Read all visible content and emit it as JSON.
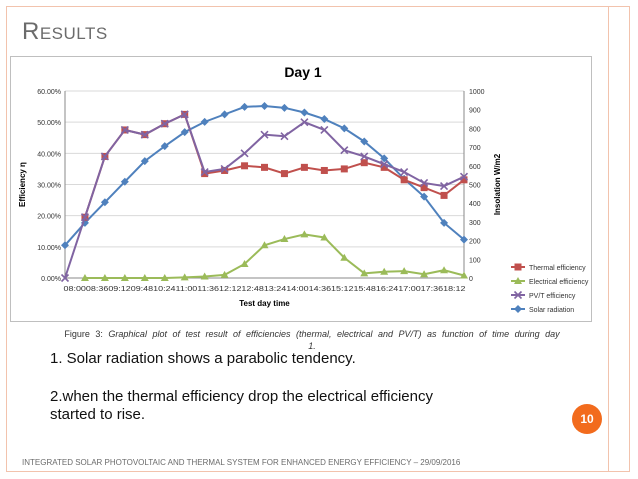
{
  "slide": {
    "title": "Results",
    "caption_lead": "Figure 3:",
    "caption_body": "Graphical plot of test result of efficiencies (thermal, electrical and PV/T) as function of time during day 1.",
    "point1": "1. Solar radiation shows a parabolic tendency.",
    "point2_line1": "2.when the thermal efficiency drop the electrical efficiency",
    "point2_line2": "started to rise.",
    "page_number": "10",
    "footer": "INTEGRATED SOLAR PHOTOVOLTAIC AND THERMAL SYSTEM FOR ENHANCED ENERGY EFFICIENCY – 29/09/2016"
  },
  "chart_data": {
    "type": "line",
    "title": "Day 1",
    "xlabel": "Test  day time",
    "ylabel": "Efficiency η",
    "y2label": "Insolation W/m2",
    "x_tick_text": "08:0008:3609:1209:4810:2411:0011:3612:1212:4813:2414:0014:3615:1215:4816:2417:0017:3618:12",
    "ylim": [
      0,
      60
    ],
    "yticks": [
      "0.00%",
      "10.00%",
      "20.00%",
      "30.00%",
      "40.00%",
      "50.00%",
      "60.00%"
    ],
    "y2lim": [
      0,
      1000
    ],
    "y2ticks": [
      "0",
      "100",
      "200",
      "300",
      "400",
      "500",
      "600",
      "700",
      "800",
      "900",
      "1000"
    ],
    "grid": true,
    "legend_position": "right",
    "series": [
      {
        "name": "Thermal efficiency",
        "axis": "left",
        "color": "#c0504d",
        "marker": "square",
        "x": [
          1,
          2,
          3,
          4,
          5,
          6,
          7,
          8,
          9,
          10,
          11,
          12,
          13,
          14,
          15,
          16,
          17,
          18,
          19,
          20
        ],
        "values": [
          19.5,
          39,
          47.5,
          46,
          49.5,
          52.5,
          33.5,
          34.5,
          36,
          35.5,
          33.5,
          35.5,
          34.5,
          35,
          37,
          35.5,
          31.5,
          29,
          26.5,
          31.5
        ]
      },
      {
        "name": "Electrical efficiency",
        "axis": "left",
        "color": "#9bbb59",
        "marker": "triangle",
        "x": [
          1,
          2,
          3,
          4,
          5,
          6,
          7,
          8,
          9,
          10,
          11,
          12,
          13,
          14,
          15,
          16,
          17,
          18,
          19,
          20
        ],
        "values": [
          0,
          0,
          0,
          0,
          0,
          0.2,
          0.5,
          1,
          4.5,
          10.5,
          12.5,
          14,
          13,
          6.5,
          1.5,
          2,
          2.2,
          1.2,
          2.5,
          0.8
        ]
      },
      {
        "name": "PV/T efficiency",
        "axis": "left",
        "color": "#8064a2",
        "marker": "x",
        "x": [
          0,
          1,
          2,
          3,
          4,
          5,
          6,
          7,
          8,
          9,
          10,
          11,
          12,
          13,
          14,
          15,
          16,
          17,
          18,
          19,
          20
        ],
        "values": [
          0,
          19.5,
          39,
          47.5,
          46,
          49.5,
          52.5,
          34,
          35,
          40,
          46,
          45.5,
          50,
          47.5,
          41,
          39,
          36.5,
          34,
          30.5,
          29.5,
          32.5
        ]
      },
      {
        "name": "Solar radiation",
        "axis": "right",
        "color": "#4f81bd",
        "marker": "diamond",
        "x": [
          0,
          1,
          2,
          3,
          4,
          5,
          6,
          7,
          8,
          9,
          10,
          11,
          12,
          13,
          14,
          15,
          16,
          17,
          18,
          19,
          20
        ],
        "values": [
          175,
          295,
          405,
          515,
          625,
          705,
          780,
          835,
          875,
          915,
          920,
          910,
          885,
          850,
          800,
          730,
          640,
          530,
          435,
          295,
          205
        ]
      }
    ]
  }
}
